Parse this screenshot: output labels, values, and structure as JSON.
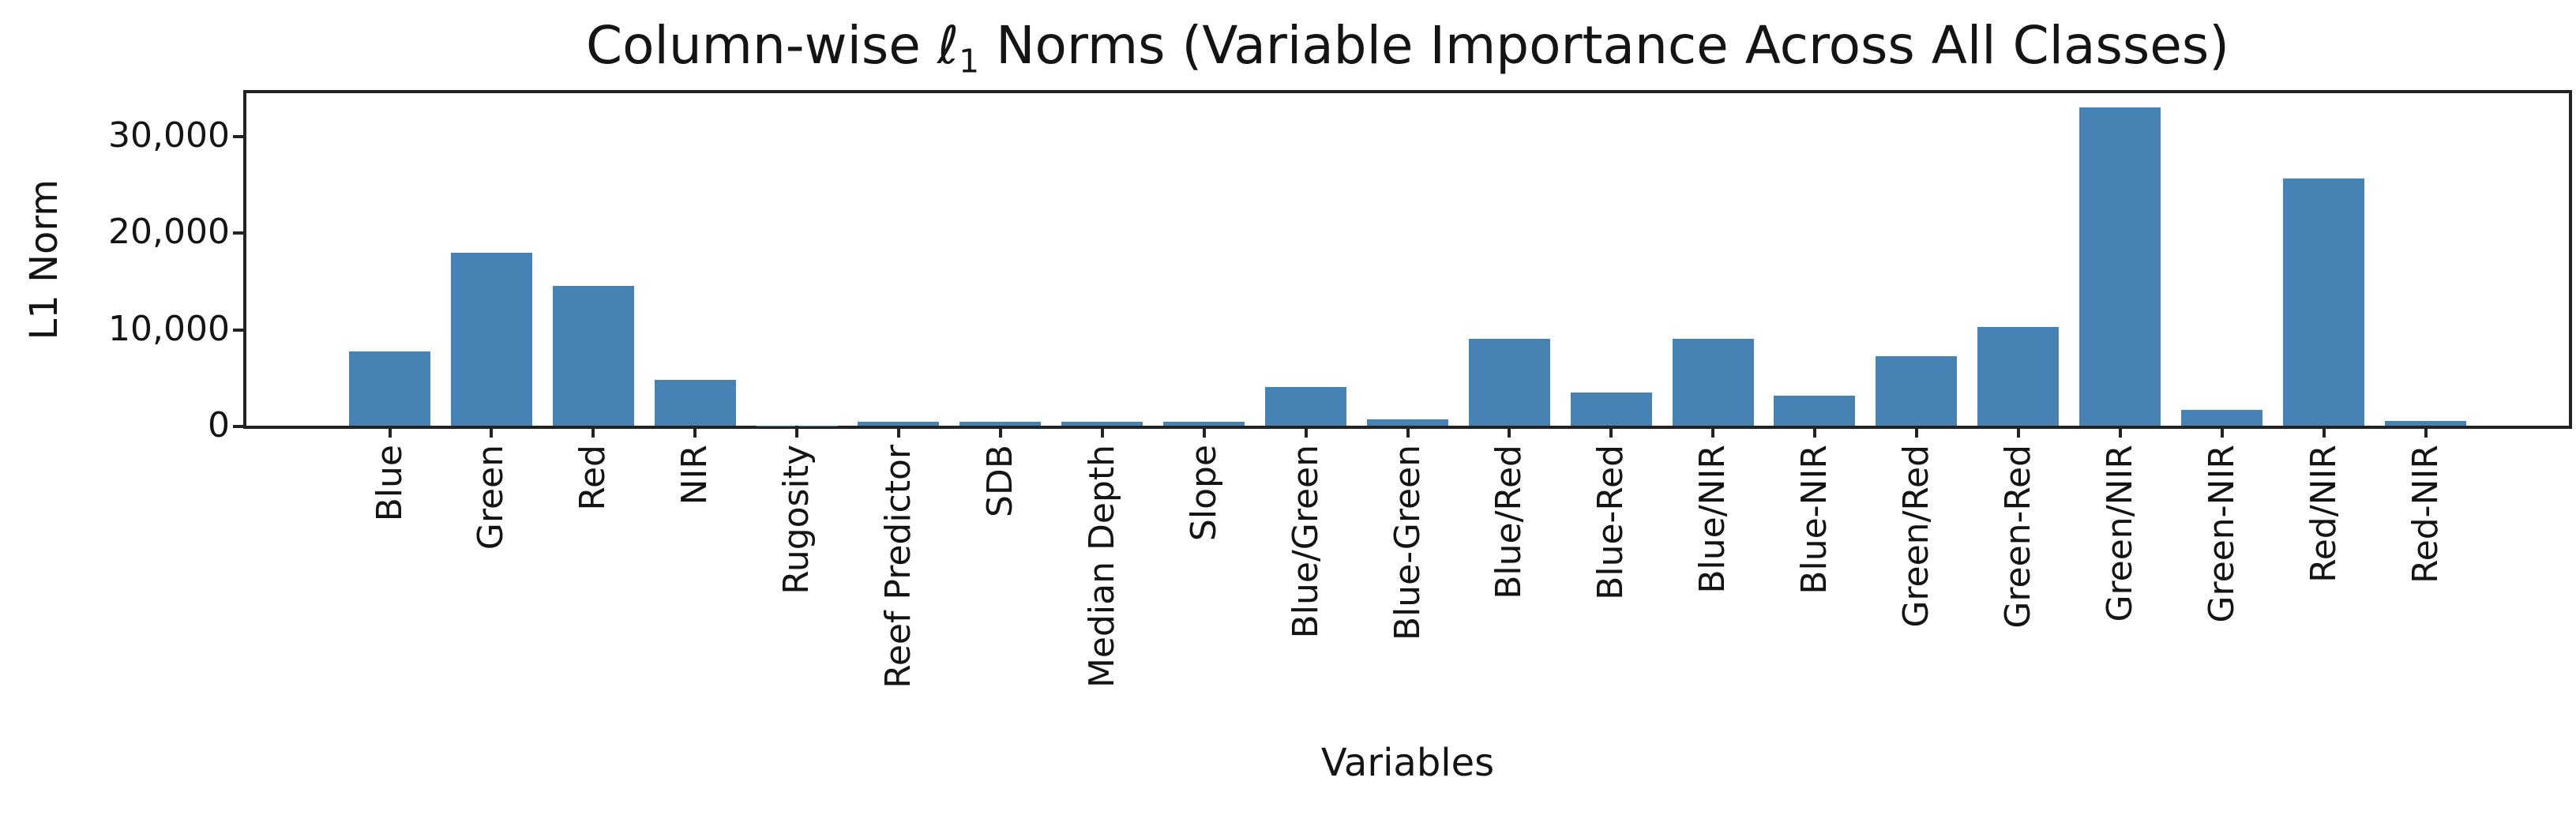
{
  "title": {
    "prefix": "Column-wise ",
    "ell": "ℓ",
    "subscript": "1",
    "suffix": " Norms (Variable Importance Across All Classes)"
  },
  "axes": {
    "x_label": "Variables",
    "y_label": "L1 Norm"
  },
  "chart_data": {
    "type": "bar",
    "title": "Column-wise ℓ1 Norms (Variable Importance Across All Classes)",
    "xlabel": "Variables",
    "ylabel": "L1 Norm",
    "ylim": [
      0,
      34400
    ],
    "grid": false,
    "legend": "none",
    "bar_color": "#4682B4",
    "axis_color": "#232323",
    "categories": [
      "Blue",
      "Green",
      "Red",
      "NIR",
      "Rugosity",
      "Reef Predictor",
      "SDB",
      "Median Depth",
      "Slope",
      "Blue/Green",
      "Blue-Green",
      "Blue/Red",
      "Blue-Red",
      "Blue/NIR",
      "Blue-NIR",
      "Green/Red",
      "Green-Red",
      "Green/NIR",
      "Green-NIR",
      "Red/NIR",
      "Red-NIR"
    ],
    "values": [
      7700,
      17900,
      14500,
      4700,
      30,
      400,
      400,
      400,
      400,
      4000,
      620,
      9000,
      3450,
      9000,
      3100,
      7200,
      10200,
      32900,
      1600,
      25600,
      480
    ],
    "y_ticks": [
      {
        "value": 0,
        "label": "0"
      },
      {
        "value": 10000,
        "label": "10,000"
      },
      {
        "value": 20000,
        "label": "20,000"
      },
      {
        "value": 30000,
        "label": "30,000"
      }
    ]
  }
}
